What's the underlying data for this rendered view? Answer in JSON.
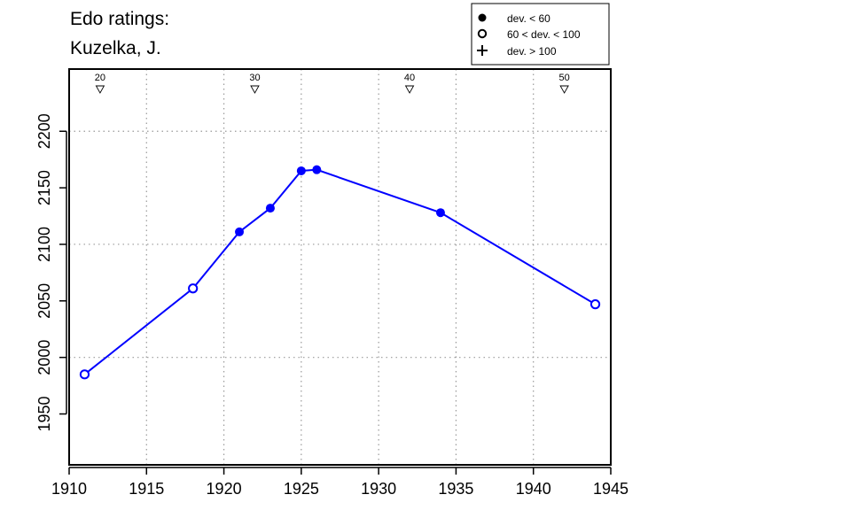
{
  "title_line1": "Edo ratings:",
  "title_line2": "Kuzelka, J.",
  "legend": [
    {
      "marker": "filled-circle",
      "label": "dev. < 60"
    },
    {
      "marker": "open-circle",
      "label": "60 < dev. < 100"
    },
    {
      "marker": "plus",
      "label": "dev. > 100"
    }
  ],
  "colors": {
    "series": "#0000ff",
    "axis": "#000000",
    "grid": "#999999"
  },
  "chart_data": {
    "type": "line",
    "title": "Edo ratings: Kuzelka, J.",
    "xlabel": "",
    "ylabel": "",
    "xlim": [
      1910,
      1945
    ],
    "ylim": [
      1905,
      2255
    ],
    "xticks": [
      1910,
      1915,
      1920,
      1925,
      1930,
      1935,
      1940,
      1945
    ],
    "yticks": [
      1950,
      2000,
      2050,
      2100,
      2150,
      2200
    ],
    "grid_x": [
      1915,
      1920,
      1925,
      1930,
      1935,
      1940
    ],
    "grid_y": [
      2000,
      2100,
      2200
    ],
    "grid": true,
    "legend_position": "top-right",
    "age_markers": [
      {
        "label": "20",
        "x": 1912
      },
      {
        "label": "30",
        "x": 1922
      },
      {
        "label": "40",
        "x": 1932
      },
      {
        "label": "50",
        "x": 1942
      }
    ],
    "series": [
      {
        "points": [
          {
            "x": 1911,
            "y": 1985,
            "dev": "60-100"
          },
          {
            "x": 1918,
            "y": 2061,
            "dev": "60-100"
          },
          {
            "x": 1921,
            "y": 2111,
            "dev": "<60"
          },
          {
            "x": 1923,
            "y": 2132,
            "dev": "<60"
          },
          {
            "x": 1925,
            "y": 2165,
            "dev": "<60"
          },
          {
            "x": 1926,
            "y": 2166,
            "dev": "<60"
          },
          {
            "x": 1934,
            "y": 2128,
            "dev": "<60"
          },
          {
            "x": 1944,
            "y": 2047,
            "dev": "60-100"
          }
        ]
      }
    ]
  }
}
